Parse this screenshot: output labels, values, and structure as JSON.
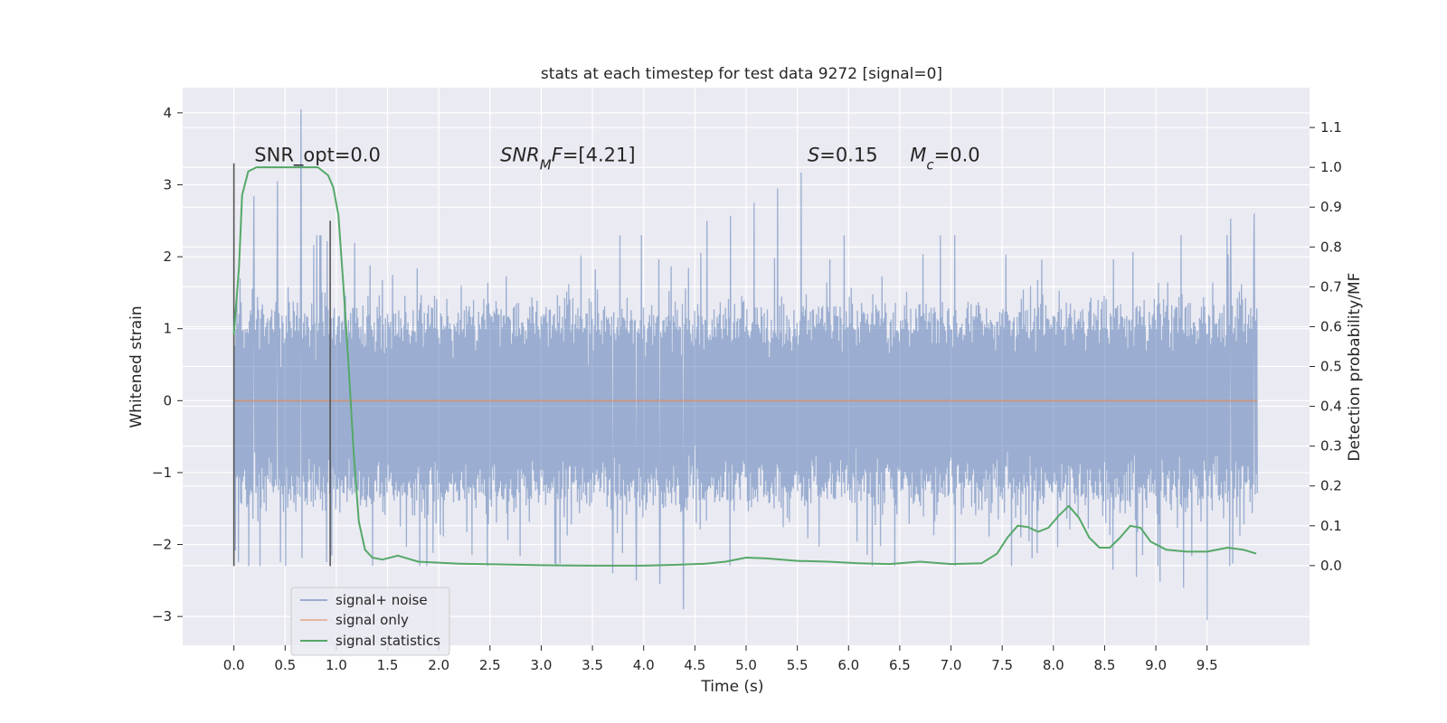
{
  "chart_data": {
    "type": "line",
    "title": "stats at each timestep for test data 9272 [signal=0]",
    "xlabel": "Time (s)",
    "ylabel": "Whitened strain",
    "ylabel_right": "Detection probability/MF",
    "xlim": [
      -0.5,
      10.5
    ],
    "ylim": [
      -3.4,
      4.35
    ],
    "ylim_right": [
      -0.2,
      1.2
    ],
    "x_ticks": [
      "0.0",
      "0.5",
      "1.0",
      "1.5",
      "2.0",
      "2.5",
      "3.0",
      "3.5",
      "4.0",
      "4.5",
      "5.0",
      "5.5",
      "6.0",
      "6.5",
      "7.0",
      "7.5",
      "8.0",
      "8.5",
      "9.0",
      "9.5"
    ],
    "y_ticks": [
      "−3",
      "−2",
      "−1",
      "0",
      "1",
      "2",
      "3",
      "4"
    ],
    "y_ticks_right": [
      "0.0",
      "0.1",
      "0.2",
      "0.3",
      "0.4",
      "0.5",
      "0.6",
      "0.7",
      "0.8",
      "0.9",
      "1.0",
      "1.1"
    ],
    "grid": true,
    "legend_position": "lower-left",
    "annotations": [
      {
        "html": "SNR_opt=0.0",
        "x": 0.2
      },
      {
        "html": "<tspan font-style='italic'>SNR</tspan><tspan font-style='italic' baseline-shift='sub' font-size='15'>M</tspan><tspan font-style='italic'>F</tspan>=[4.21]",
        "x": 2.6
      },
      {
        "html": "<tspan font-style='italic'>S</tspan>=0.15",
        "x": 5.6
      },
      {
        "html": "<tspan font-style='italic'>M</tspan><tspan font-style='italic' baseline-shift='sub' font-size='15'>c</tspan>=0.0",
        "x": 6.6
      }
    ],
    "annotation_y": 3.3,
    "vertical_markers": [
      {
        "x": 0.0,
        "y0": -2.3,
        "y1": 3.3
      },
      {
        "x": 0.94,
        "y0": -2.3,
        "y1": 2.5
      }
    ],
    "series": [
      {
        "name": "signal+ noise",
        "kind": "noise",
        "axis": "left",
        "x_range": [
          0.0,
          9.99
        ],
        "typical_range": [
          -1.2,
          1.1
        ],
        "peak_values": [
          4.05,
          3.17,
          3.05,
          2.95,
          2.84,
          2.75,
          2.6,
          2.57,
          2.53,
          2.5,
          -3.05,
          -2.9,
          -2.6,
          -2.55,
          -2.52,
          -2.5,
          -2.45,
          -2.4,
          -2.35
        ],
        "color": "#4c72b0"
      },
      {
        "name": "signal only",
        "kind": "line",
        "axis": "left",
        "points": [
          [
            0.0,
            0.0
          ],
          [
            9.99,
            0.0
          ]
        ],
        "color": "#dd8452"
      },
      {
        "name": "signal statistics",
        "kind": "line",
        "axis": "right",
        "color": "#55a868",
        "points": [
          [
            0.0,
            0.58
          ],
          [
            0.05,
            0.75
          ],
          [
            0.08,
            0.93
          ],
          [
            0.14,
            0.99
          ],
          [
            0.22,
            1.0
          ],
          [
            0.6,
            1.0
          ],
          [
            0.82,
            1.0
          ],
          [
            0.92,
            0.98
          ],
          [
            0.97,
            0.95
          ],
          [
            1.02,
            0.88
          ],
          [
            1.07,
            0.7
          ],
          [
            1.12,
            0.5
          ],
          [
            1.17,
            0.28
          ],
          [
            1.22,
            0.11
          ],
          [
            1.28,
            0.04
          ],
          [
            1.35,
            0.02
          ],
          [
            1.45,
            0.015
          ],
          [
            1.6,
            0.025
          ],
          [
            1.8,
            0.01
          ],
          [
            2.2,
            0.005
          ],
          [
            2.6,
            0.003
          ],
          [
            3.0,
            0.001
          ],
          [
            3.5,
            0.0
          ],
          [
            4.0,
            0.0
          ],
          [
            4.3,
            0.002
          ],
          [
            4.6,
            0.005
          ],
          [
            4.8,
            0.01
          ],
          [
            5.0,
            0.02
          ],
          [
            5.2,
            0.018
          ],
          [
            5.5,
            0.012
          ],
          [
            5.8,
            0.01
          ],
          [
            6.1,
            0.006
          ],
          [
            6.4,
            0.004
          ],
          [
            6.7,
            0.01
          ],
          [
            7.0,
            0.004
          ],
          [
            7.3,
            0.006
          ],
          [
            7.45,
            0.03
          ],
          [
            7.55,
            0.07
          ],
          [
            7.65,
            0.1
          ],
          [
            7.75,
            0.097
          ],
          [
            7.85,
            0.085
          ],
          [
            7.95,
            0.095
          ],
          [
            8.05,
            0.125
          ],
          [
            8.15,
            0.15
          ],
          [
            8.25,
            0.12
          ],
          [
            8.35,
            0.07
          ],
          [
            8.45,
            0.045
          ],
          [
            8.55,
            0.045
          ],
          [
            8.65,
            0.07
          ],
          [
            8.75,
            0.1
          ],
          [
            8.85,
            0.095
          ],
          [
            8.95,
            0.06
          ],
          [
            9.1,
            0.04
          ],
          [
            9.3,
            0.035
          ],
          [
            9.5,
            0.035
          ],
          [
            9.7,
            0.045
          ],
          [
            9.85,
            0.04
          ],
          [
            9.98,
            0.03
          ]
        ]
      }
    ]
  }
}
